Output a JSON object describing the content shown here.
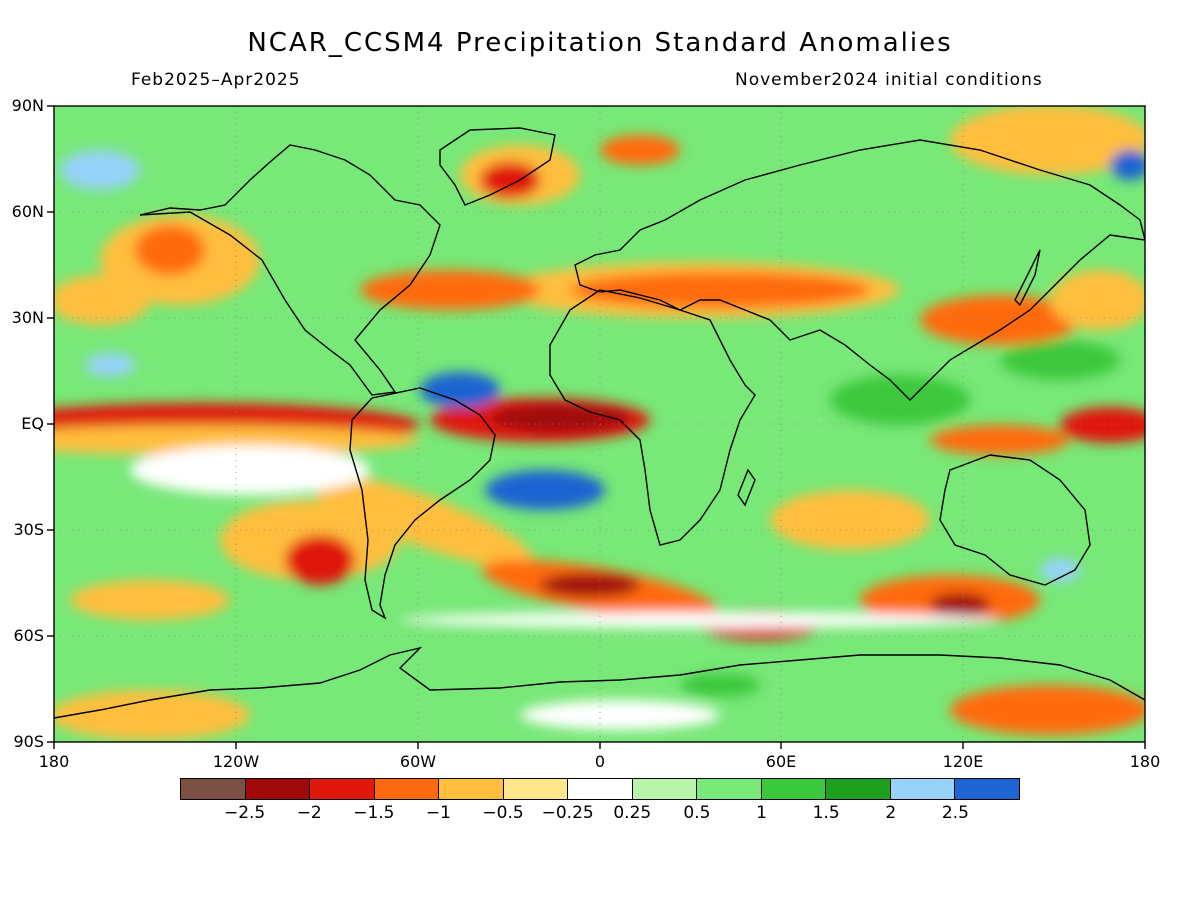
{
  "header": {
    "title": "NCAR_CCSM4 Precipitation Standard Anomalies",
    "period": "Feb2025–Apr2025",
    "init": "November2024 initial conditions"
  },
  "axes": {
    "lat_labels": [
      "90N",
      "60N",
      "30N",
      "EQ",
      "30S",
      "60S",
      "90S"
    ],
    "lon_labels": [
      "180",
      "120W",
      "60W",
      "0",
      "60E",
      "120E",
      "180"
    ]
  },
  "colorbar": {
    "colors": [
      "#7a5142",
      "#a00a0a",
      "#e0180c",
      "#ff6a10",
      "#ffbe3c",
      "#ffe68a",
      "#ffffff",
      "#b8f5a8",
      "#78e878",
      "#3cc83c",
      "#1ea01e",
      "#96d2fa",
      "#1e64d2"
    ],
    "labels": [
      "−2.5",
      "−2",
      "−1.5",
      "−1",
      "−0.5",
      "−0.25",
      "0.25",
      "0.5",
      "1",
      "1.5",
      "2",
      "2.5"
    ]
  }
}
